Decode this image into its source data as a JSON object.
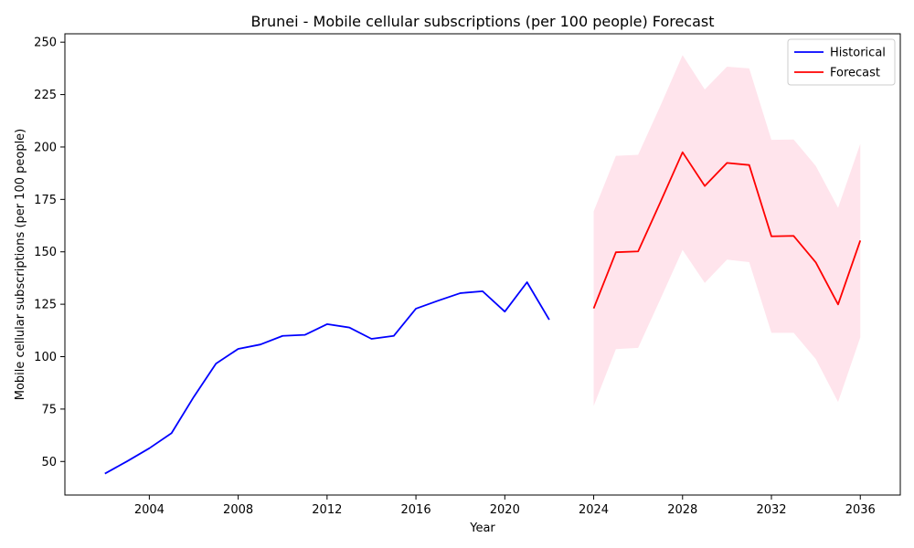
{
  "chart_data": {
    "type": "line",
    "title": "Brunei - Mobile cellular subscriptions (per 100 people) Forecast",
    "xlabel": "Year",
    "ylabel": "Mobile cellular subscriptions (per 100 people)",
    "xlim": [
      2000.2,
      2037.8
    ],
    "ylim": [
      34,
      254
    ],
    "x_ticks": [
      2004,
      2008,
      2012,
      2016,
      2020,
      2024,
      2028,
      2032,
      2036
    ],
    "y_ticks": [
      50,
      75,
      100,
      125,
      150,
      175,
      200,
      225,
      250
    ],
    "grid": false,
    "legend": {
      "position": "top-right",
      "entries": [
        "Historical",
        "Forecast"
      ]
    },
    "colors": {
      "historical": "#0000ff",
      "forecast": "#ff0000",
      "band": "#ffe4ec"
    },
    "series": [
      {
        "name": "Historical",
        "x": [
          2002,
          2003,
          2004,
          2005,
          2006,
          2007,
          2008,
          2009,
          2010,
          2011,
          2012,
          2013,
          2014,
          2015,
          2016,
          2017,
          2018,
          2019,
          2020,
          2021,
          2022
        ],
        "y": [
          44.2,
          50.1,
          56.3,
          63.5,
          80.8,
          96.7,
          103.7,
          105.8,
          109.9,
          110.4,
          115.5,
          113.9,
          108.5,
          109.9,
          122.9,
          126.7,
          130.3,
          131.2,
          121.5,
          135.5,
          117.6
        ]
      },
      {
        "name": "Forecast",
        "x": [
          2024,
          2025,
          2026,
          2027,
          2028,
          2029,
          2030,
          2031,
          2032,
          2033,
          2034,
          2035,
          2036
        ],
        "y": [
          123.0,
          149.8,
          150.2,
          173.6,
          197.5,
          181.4,
          192.4,
          191.4,
          157.4,
          157.6,
          144.9,
          124.9,
          155.4
        ],
        "lower": [
          76.5,
          103.6,
          104.2,
          127.4,
          150.9,
          135.2,
          146.3,
          145.1,
          111.4,
          111.4,
          98.8,
          78.4,
          109.2
        ],
        "upper": [
          169.3,
          195.8,
          196.3,
          219.6,
          243.8,
          227.4,
          238.3,
          237.5,
          203.4,
          203.6,
          190.9,
          171.0,
          201.5
        ]
      }
    ]
  }
}
